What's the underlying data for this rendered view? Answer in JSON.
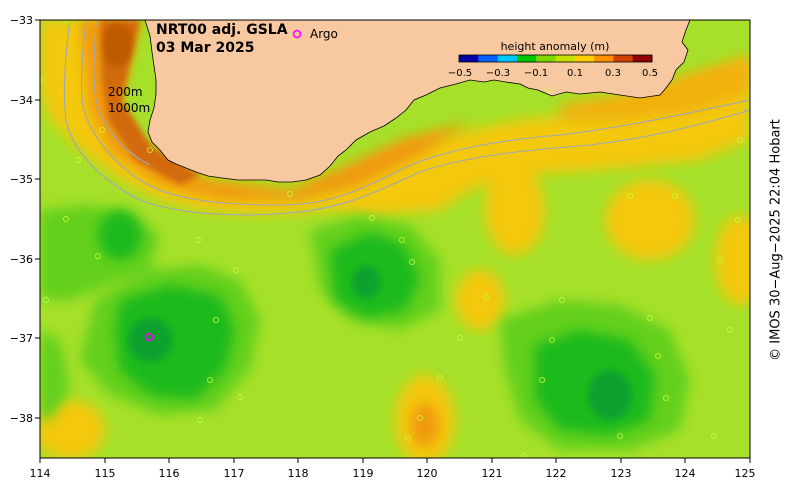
{
  "map": {
    "title_line1": "NRT00 adj. GSLA",
    "title_line2": "03 Mar 2025",
    "legend_label": "Argo",
    "isobath_200": "200m",
    "isobath_1000": "1000m",
    "x_ticks": [
      "114",
      "115",
      "116",
      "117",
      "118",
      "119",
      "120",
      "121",
      "122",
      "123",
      "124",
      "125"
    ],
    "y_ticks": [
      "−33",
      "−34",
      "−35",
      "−36",
      "−37",
      "−38"
    ],
    "lon_range": [
      114,
      125
    ],
    "lat_range": [
      -33,
      -38.5
    ],
    "argo_float": {
      "lon": 115.7,
      "lat": -37.0
    }
  },
  "colorbar": {
    "title": "height anomaly (m)",
    "ticks": [
      "−0.5",
      "−0.3",
      "−0.1",
      "0.1",
      "0.3",
      "0.5"
    ],
    "colors": [
      "#0000a0",
      "#0060ff",
      "#00c8ff",
      "#00c800",
      "#7fd800",
      "#c8e000",
      "#ffd000",
      "#ff9000",
      "#d04000",
      "#900000"
    ]
  },
  "credit": "© IMOS 30−Aug−2025 22:04 Hobart",
  "palette": {
    "land": "#f8c8a0",
    "sea_base": "#a6e02a",
    "high": "#f3c80a",
    "higher": "#f09a10",
    "highest": "#d26a08",
    "low": "#64d01e",
    "lower": "#1eba1e",
    "lowest": "#0ba22e",
    "isobath": "#a0a8b8"
  }
}
